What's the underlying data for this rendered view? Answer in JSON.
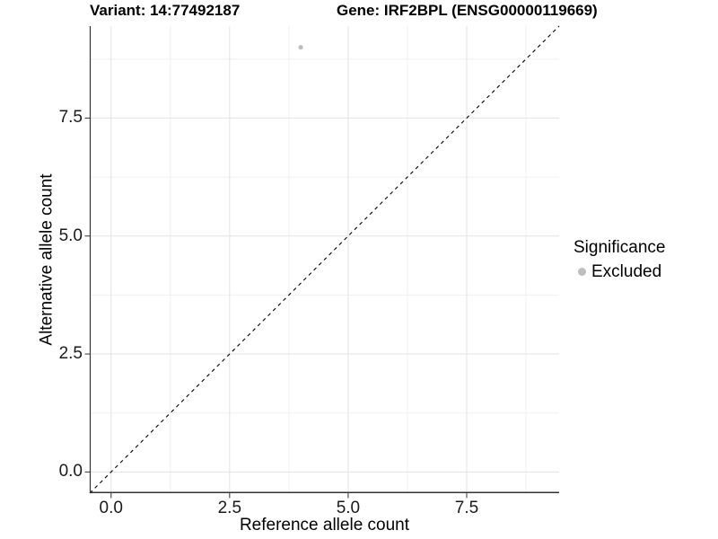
{
  "header": {
    "variant_title": "Variant: 14:77492187",
    "gene_title": "Gene: IRF2BPL (ENSG00000119669)"
  },
  "chart_data": {
    "type": "scatter",
    "title": "Variant: 14:77492187  /  Gene: IRF2BPL (ENSG00000119669)",
    "xlabel": "Reference allele count",
    "ylabel": "Alternative allele count",
    "xlim": [
      -0.45,
      9.45
    ],
    "ylim": [
      -0.45,
      9.45
    ],
    "x_ticks": [
      0,
      2.5,
      5,
      7.5
    ],
    "x_tick_labels": [
      "0.0",
      "2.5",
      "5.0",
      "7.5"
    ],
    "x_minor_ticks": [
      1.25,
      3.75,
      6.25,
      8.75
    ],
    "y_ticks": [
      0,
      2.5,
      5,
      7.5
    ],
    "y_tick_labels": [
      "0.0",
      "2.5",
      "5.0",
      "7.5"
    ],
    "y_minor_ticks": [
      1.25,
      3.75,
      6.25,
      8.75
    ],
    "grid": true,
    "series": [
      {
        "name": "Excluded",
        "color": "#bebebe",
        "points": [
          [
            4,
            9
          ]
        ]
      }
    ],
    "reference_line": {
      "kind": "identity",
      "style": "dashed",
      "color": "#000000",
      "from": [
        -0.45,
        -0.45
      ],
      "to": [
        9.45,
        9.45
      ]
    },
    "legend": {
      "title": "Significance",
      "position": "right",
      "items": [
        {
          "label": "Excluded",
          "color": "#bebebe"
        }
      ]
    }
  },
  "colors": {
    "background": "#ffffff",
    "grid_major": "#e3e3e3",
    "grid_minor": "#f0f0f0",
    "axis_line": "#333333",
    "tick_mark": "#333333",
    "tick_text": "#1a1a1a",
    "title_text": "#000000",
    "point": "#bebebe"
  }
}
